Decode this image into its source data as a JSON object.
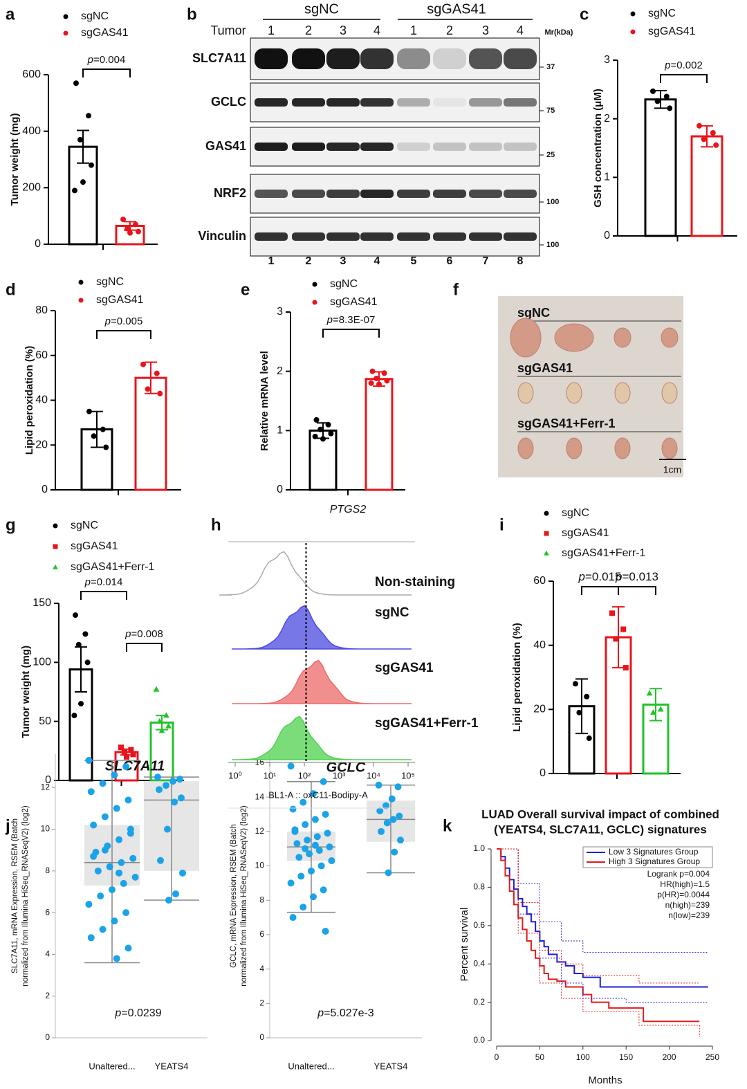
{
  "panel_labels": [
    "a",
    "b",
    "c",
    "d",
    "e",
    "f",
    "g",
    "h",
    "i",
    "j",
    "k"
  ],
  "chart_data": [
    {
      "type": "bar",
      "ylabel": "Tumor weight (mg)",
      "ylim": [
        0,
        600
      ],
      "yticks": [
        0,
        200,
        400,
        600
      ],
      "series": [
        {
          "name": "sgNC",
          "color": "#000000",
          "marker": "circle",
          "values": [
            345
          ],
          "errors": [
            58
          ],
          "points": [
            570,
            455,
            370,
            280,
            220,
            190
          ]
        },
        {
          "name": "sgGAS41",
          "color": "#e8141c",
          "marker": "circle",
          "values": [
            65
          ],
          "errors": [
            15
          ],
          "points": [
            88,
            70,
            55,
            45,
            40
          ]
        }
      ],
      "annotations": [
        "p=0.004"
      ]
    },
    {
      "type": "bar",
      "ylabel": "GSH concentration (μM)",
      "ylim": [
        0,
        3
      ],
      "yticks": [
        0,
        1,
        2,
        3
      ],
      "series": [
        {
          "name": "sgNC",
          "color": "#000000",
          "marker": "circle",
          "values": [
            2.33
          ],
          "errors": [
            0.15
          ],
          "points": [
            2.47,
            2.38,
            2.3,
            2.18
          ]
        },
        {
          "name": "sgGAS41",
          "color": "#e8141c",
          "marker": "circle",
          "values": [
            1.7
          ],
          "errors": [
            0.18
          ],
          "points": [
            1.88,
            1.76,
            1.65,
            1.55
          ]
        }
      ],
      "annotations": [
        "p=0.002"
      ]
    },
    {
      "type": "bar",
      "ylabel": "Lipid peroxidation (%)",
      "ylim": [
        0,
        80
      ],
      "yticks": [
        0,
        20,
        40,
        60,
        80
      ],
      "series": [
        {
          "name": "sgNC",
          "color": "#000000",
          "marker": "circle",
          "values": [
            27
          ],
          "errors": [
            8
          ],
          "points": [
            35,
            27,
            24,
            19
          ]
        },
        {
          "name": "sgGAS41",
          "color": "#e8141c",
          "marker": "circle",
          "values": [
            50
          ],
          "errors": [
            7
          ],
          "points": [
            56,
            52,
            45,
            43
          ]
        }
      ],
      "annotations": [
        "p=0.005"
      ]
    },
    {
      "type": "bar",
      "ylabel": "Relative mRNA level",
      "xlabel": "PTGS2",
      "ylim": [
        0,
        3
      ],
      "yticks": [
        0,
        1,
        2,
        3
      ],
      "series": [
        {
          "name": "sgNC",
          "color": "#000000",
          "marker": "circle",
          "values": [
            1.0
          ],
          "errors": [
            0.13
          ],
          "points": [
            1.18,
            1.1,
            1.02,
            0.95,
            0.86,
            0.9
          ]
        },
        {
          "name": "sgGAS41",
          "color": "#e8141c",
          "marker": "circle",
          "values": [
            1.87
          ],
          "errors": [
            0.12
          ],
          "points": [
            2.0,
            1.97,
            1.88,
            1.84,
            1.78,
            1.8
          ]
        }
      ],
      "annotations": [
        "p=8.3E-07"
      ]
    },
    {
      "type": "bar",
      "ylabel": "Tumor weight (mg)",
      "ylim": [
        0,
        150
      ],
      "yticks": [
        0,
        50,
        100,
        150
      ],
      "series": [
        {
          "name": "sgNC",
          "color": "#000000",
          "marker": "circle",
          "values": [
            94
          ],
          "errors": [
            19
          ],
          "points": [
            140,
            124,
            115,
            100,
            65,
            55
          ]
        },
        {
          "name": "sgGAS41",
          "color": "#e8141c",
          "marker": "square",
          "values": [
            24
          ],
          "errors": [
            2.5
          ],
          "points": [
            28,
            26,
            24,
            22,
            20
          ]
        },
        {
          "name": "sgGAS41+Ferr-1",
          "color": "#22c32a",
          "marker": "triangle",
          "values": [
            49
          ],
          "errors": [
            6
          ],
          "points": [
            77,
            55,
            50,
            46,
            42
          ]
        }
      ],
      "annotations": [
        "p=0.014",
        "p=0.008"
      ]
    },
    {
      "type": "bar",
      "ylabel": "Lipid peroxidation (%)",
      "ylim": [
        0,
        60
      ],
      "yticks": [
        0,
        20,
        40,
        60
      ],
      "series": [
        {
          "name": "sgNC",
          "color": "#000000",
          "marker": "circle",
          "values": [
            21
          ],
          "errors": [
            8.5
          ],
          "points": [
            28,
            24,
            19,
            11
          ]
        },
        {
          "name": "sgGAS41",
          "color": "#e8141c",
          "marker": "square",
          "values": [
            42.5
          ],
          "errors": [
            9.5
          ],
          "points": [
            50,
            45,
            42,
            33
          ]
        },
        {
          "name": "sgGAS41+Ferr-1",
          "color": "#22c32a",
          "marker": "triangle",
          "values": [
            21.5
          ],
          "errors": [
            5
          ],
          "points": [
            25,
            20,
            19
          ]
        }
      ],
      "annotations": [
        "p=0.015",
        "p=0.013"
      ]
    },
    {
      "type": "box",
      "title": "SLC7A11",
      "ylabel_lines": [
        "SLC7A11, mRNA Expression, RSEM (Batch",
        "normalized from Illumina HiSeq_RNASeqV2) (log2)"
      ],
      "categories": [
        "Unaltered...",
        "YEATS4"
      ],
      "ylim": [
        0,
        13.6
      ],
      "yticks": [
        0,
        2,
        4,
        6,
        8,
        10,
        12
      ],
      "color": "#1aa3e8",
      "boxes": [
        {
          "min": 3.6,
          "q1": 7.3,
          "median": 8.4,
          "q3": 10.2,
          "max": 13.3
        },
        {
          "min": 6.6,
          "q1": 8.0,
          "median": 11.4,
          "q3": 12.3,
          "max": 12.5
        }
      ],
      "points": [
        [
          13.3,
          13.0,
          12.6,
          12.2,
          11.8,
          11.4,
          11.0,
          10.6,
          10.2,
          9.8,
          9.5,
          9.2,
          8.9,
          8.6,
          8.4,
          8.2,
          8.0,
          7.7,
          7.4,
          7.1,
          6.8,
          6.4,
          6.0,
          5.6,
          5.2,
          4.8,
          4.3,
          3.8,
          9.0,
          8.7,
          10.0,
          7.9
        ],
        [
          12.5,
          12.4,
          12.3,
          12.1,
          11.9,
          11.5,
          11.3,
          10.0,
          8.5,
          7.9,
          6.9,
          6.6
        ]
      ],
      "annotation": "p=0.0239"
    },
    {
      "type": "box",
      "title": "GCLC",
      "ylabel_lines": [
        "GCLC, mRNA Expression, RSEM (Batch",
        "normalized from Illumina HiSeq_RNASeqV2) (log2)"
      ],
      "categories": [
        "Unaltered...",
        "YEATS4"
      ],
      "ylim": [
        0,
        16.5
      ],
      "yticks": [
        0,
        2,
        4,
        6,
        8,
        10,
        12,
        14,
        16
      ],
      "color": "#1aa3e8",
      "boxes": [
        {
          "min": 7.3,
          "q1": 10.3,
          "median": 11.1,
          "q3": 12.0,
          "max": 14.9
        },
        {
          "min": 9.6,
          "q1": 11.4,
          "median": 12.7,
          "q3": 13.8,
          "max": 14.7
        }
      ],
      "points": [
        [
          15.8,
          14.9,
          14.2,
          13.7,
          13.3,
          13.0,
          12.7,
          12.4,
          12.1,
          11.9,
          11.7,
          11.5,
          11.3,
          11.1,
          10.9,
          10.7,
          10.5,
          10.3,
          10.0,
          9.7,
          9.4,
          9.0,
          8.6,
          8.2,
          7.6,
          7.0,
          6.2,
          11.2,
          11.0,
          12.0
        ],
        [
          14.7,
          14.6,
          13.9,
          13.5,
          13.2,
          12.9,
          12.7,
          12.5,
          12.0,
          11.5,
          10.8,
          9.6
        ]
      ],
      "annotation": "p=5.027e-3"
    },
    {
      "type": "line",
      "title_lines": [
        "LUAD Overall survival impact of combined",
        "(YEATS4, SLC7A11, GCLC) signatures"
      ],
      "xlabel": "Months",
      "ylabel": "Percent survival",
      "xlim": [
        0,
        250
      ],
      "xticks": [
        0,
        50,
        100,
        150,
        200,
        250
      ],
      "ylim": [
        0,
        1
      ],
      "yticks": [
        {
          "value": 0,
          "label": "0.0"
        },
        0.2,
        0.4,
        0.6,
        0.8,
        {
          "value": 1,
          "label": "1.0"
        }
      ],
      "series": [
        {
          "name": "Low 3 Signatures Group",
          "color": "#1f1fd6",
          "x": [
            0,
            5,
            10,
            15,
            20,
            25,
            30,
            35,
            40,
            45,
            50,
            55,
            60,
            70,
            80,
            90,
            100,
            120,
            150,
            200,
            245
          ],
          "y": [
            1,
            0.96,
            0.9,
            0.84,
            0.79,
            0.74,
            0.7,
            0.66,
            0.62,
            0.57,
            0.52,
            0.49,
            0.45,
            0.41,
            0.39,
            0.35,
            0.33,
            0.28,
            0.28,
            0.28,
            0.28
          ]
        },
        {
          "name": "High 3 Signatures Group",
          "color": "#e01b1b",
          "x": [
            0,
            5,
            10,
            15,
            20,
            25,
            30,
            35,
            40,
            45,
            50,
            55,
            60,
            70,
            80,
            100,
            110,
            130,
            165,
            170,
            235
          ],
          "y": [
            1,
            0.94,
            0.86,
            0.78,
            0.71,
            0.64,
            0.58,
            0.52,
            0.47,
            0.43,
            0.39,
            0.35,
            0.32,
            0.31,
            0.28,
            0.24,
            0.2,
            0.17,
            0.17,
            0.1,
            0.1
          ]
        },
        {
          "color": "#1f1fd6",
          "dashed": true,
          "x": [
            0,
            25,
            50,
            75,
            100,
            150,
            245
          ],
          "y": [
            1,
            0.82,
            0.62,
            0.52,
            0.46,
            0.46,
            0.46
          ]
        },
        {
          "color": "#1f1fd6",
          "dashed": true,
          "x": [
            0,
            25,
            50,
            75,
            100,
            150,
            245
          ],
          "y": [
            1,
            0.66,
            0.43,
            0.3,
            0.22,
            0.2,
            0.2
          ]
        },
        {
          "color": "#e01b1b",
          "dashed": true,
          "x": [
            0,
            25,
            50,
            75,
            100,
            165,
            235
          ],
          "y": [
            1,
            0.72,
            0.47,
            0.4,
            0.34,
            0.3,
            0.3
          ]
        },
        {
          "color": "#e01b1b",
          "dashed": true,
          "x": [
            0,
            25,
            50,
            75,
            100,
            165,
            235
          ],
          "y": [
            1,
            0.56,
            0.3,
            0.22,
            0.15,
            0.08,
            0.02
          ]
        }
      ],
      "annotations": [
        "Logrank p=0.004",
        "HR(high)=1.5",
        "p(HR)=0.0044",
        "n(high)=239",
        "n(low)=239"
      ]
    }
  ],
  "blot": {
    "groups": [
      "sgNC",
      "sgGAS41"
    ],
    "tumor_label": "Tumor",
    "lanes": [
      1,
      2,
      3,
      4,
      1,
      2,
      3,
      4
    ],
    "mr_label": "Mr(kDa)",
    "rows": [
      {
        "label": "SLC7A11",
        "marker": 37,
        "intensity": [
          1,
          1,
          0.95,
          0.85,
          0.45,
          0.15,
          0.7,
          0.75
        ]
      },
      {
        "label": "GCLC",
        "marker": 75,
        "intensity": [
          0.9,
          0.9,
          0.9,
          0.85,
          0.3,
          0.05,
          0.4,
          0.55
        ]
      },
      {
        "label": "GAS41",
        "marker": 25,
        "intensity": [
          0.95,
          0.95,
          0.9,
          0.9,
          0.15,
          0.2,
          0.2,
          0.2
        ]
      },
      {
        "label": "NRF2",
        "marker": 100,
        "intensity": [
          0.7,
          0.75,
          0.8,
          0.9,
          0.8,
          0.8,
          0.75,
          0.75
        ]
      },
      {
        "label": "Vinculin",
        "marker": 100,
        "intensity": [
          0.85,
          0.85,
          0.85,
          0.85,
          0.85,
          0.85,
          0.85,
          0.85
        ]
      }
    ],
    "lane_numbers": [
      1,
      2,
      3,
      4,
      5,
      6,
      7,
      8
    ]
  },
  "photo": {
    "rows": [
      "sgNC",
      "sgGAS41",
      "sgGAS41+Ferr-1"
    ],
    "scale_label": "1cm"
  },
  "flow": {
    "xlabel": "BL1-A :: oxC11-Bodipy-A",
    "xlim": [
      0,
      5
    ],
    "xticks": [
      {
        "value": 0,
        "label": "10⁰"
      },
      {
        "value": 1,
        "label": "10¹"
      },
      {
        "value": 2,
        "label": "10²"
      },
      {
        "value": 3,
        "label": "10³"
      },
      {
        "value": 4,
        "label": "10⁴"
      },
      {
        "value": 5,
        "label": "10⁵"
      }
    ],
    "gate": 2.05,
    "samples": [
      {
        "name": "Non-staining",
        "color": "#aaaaaa",
        "filled": false,
        "peak": 1.3
      },
      {
        "name": "sgNC",
        "color": "#4a4ae0",
        "filled": true,
        "peak": 1.9
      },
      {
        "name": "sgGAS41",
        "color": "#ec6a6a",
        "filled": true,
        "peak": 2.3
      },
      {
        "name": "sgGAS41+Ferr-1",
        "color": "#4ed24e",
        "filled": true,
        "peak": 1.75
      }
    ]
  }
}
